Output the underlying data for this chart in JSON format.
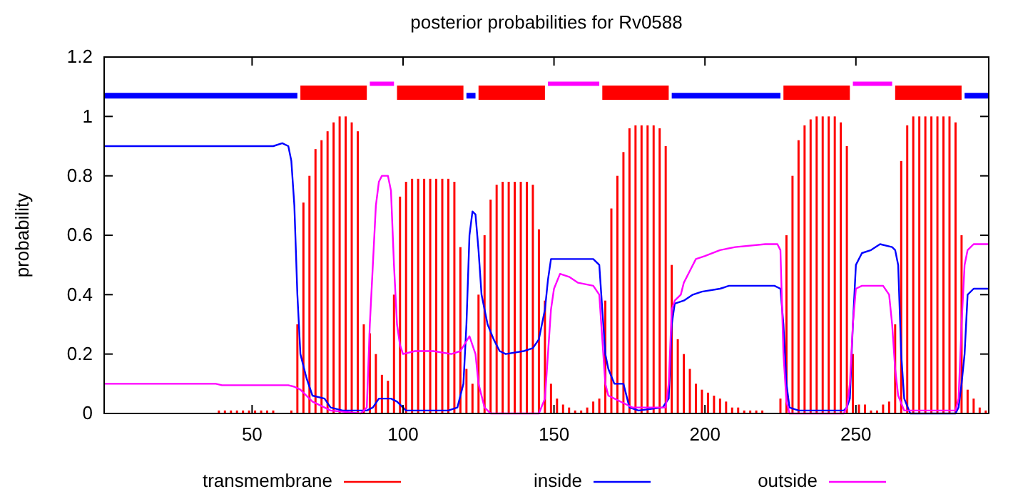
{
  "chart_data": {
    "type": "line",
    "title": "posterior probabilities for Rv0588",
    "ylabel": "probability",
    "xlim": [
      1,
      294
    ],
    "xticks": [
      50,
      100,
      150,
      200,
      250
    ],
    "ylim": [
      0,
      1.2
    ],
    "yticks": [
      0,
      {
        "value": 0.2,
        "label": "0.2"
      },
      {
        "value": 0.4,
        "label": "0.4"
      },
      {
        "value": 0.6,
        "label": "0.6"
      },
      {
        "value": 0.8,
        "label": "0.8"
      },
      1,
      {
        "value": 1.2,
        "label": "1.2"
      }
    ],
    "legend": "bottom",
    "grid": false,
    "series": [
      {
        "name": "transmembrane",
        "type": "bar",
        "color": "#ff0000",
        "x": [
          1,
          3,
          5,
          7,
          9,
          11,
          13,
          15,
          17,
          19,
          21,
          23,
          25,
          27,
          29,
          31,
          33,
          35,
          37,
          39,
          41,
          43,
          45,
          47,
          49,
          51,
          53,
          55,
          57,
          59,
          61,
          63,
          65,
          67,
          69,
          71,
          73,
          75,
          77,
          79,
          81,
          83,
          85,
          87,
          89,
          91,
          93,
          95,
          97,
          99,
          101,
          103,
          105,
          107,
          109,
          111,
          113,
          115,
          117,
          119,
          121,
          123,
          125,
          127,
          129,
          131,
          133,
          135,
          137,
          139,
          141,
          143,
          145,
          147,
          149,
          151,
          153,
          155,
          157,
          159,
          161,
          163,
          165,
          167,
          169,
          171,
          173,
          175,
          177,
          179,
          181,
          183,
          185,
          187,
          189,
          191,
          193,
          195,
          197,
          199,
          201,
          203,
          205,
          207,
          209,
          211,
          213,
          215,
          217,
          219,
          221,
          223,
          225,
          227,
          229,
          231,
          233,
          235,
          237,
          239,
          241,
          243,
          245,
          247,
          249,
          251,
          253,
          255,
          257,
          259,
          261,
          263,
          265,
          267,
          269,
          271,
          273,
          275,
          277,
          279,
          281,
          283,
          285,
          287,
          289,
          291,
          293
        ],
        "values": [
          0,
          0,
          0,
          0,
          0,
          0,
          0,
          0,
          0,
          0,
          0,
          0,
          0,
          0,
          0,
          0,
          0,
          0,
          0,
          0.01,
          0.01,
          0.01,
          0.01,
          0.01,
          0.01,
          0.01,
          0.01,
          0.01,
          0.01,
          0,
          0,
          0.01,
          0.3,
          0.71,
          0.8,
          0.89,
          0.92,
          0.95,
          0.98,
          1.0,
          1.0,
          0.98,
          0.95,
          0.3,
          0.27,
          0.2,
          0.13,
          0.11,
          0.4,
          0.73,
          0.78,
          0.79,
          0.79,
          0.79,
          0.79,
          0.79,
          0.79,
          0.79,
          0.78,
          0.56,
          0.15,
          0.1,
          0.4,
          0.6,
          0.72,
          0.77,
          0.78,
          0.78,
          0.78,
          0.78,
          0.78,
          0.77,
          0.62,
          0.38,
          0.1,
          0.05,
          0.03,
          0.02,
          0.01,
          0.01,
          0.02,
          0.04,
          0.05,
          0.38,
          0.69,
          0.8,
          0.88,
          0.96,
          0.97,
          0.97,
          0.97,
          0.97,
          0.96,
          0.9,
          0.5,
          0.25,
          0.2,
          0.15,
          0.1,
          0.08,
          0.07,
          0.06,
          0.05,
          0.04,
          0.02,
          0.02,
          0.01,
          0.01,
          0.01,
          0.01,
          0,
          0,
          0.05,
          0.6,
          0.8,
          0.92,
          0.97,
          0.99,
          1.0,
          1.0,
          1.0,
          1.0,
          0.98,
          0.9,
          0.2,
          0.03,
          0.03,
          0.01,
          0.01,
          0.03,
          0.04,
          0.3,
          0.85,
          0.97,
          1.0,
          1.0,
          1.0,
          1.0,
          1.0,
          1.0,
          1.0,
          0.98,
          0.6,
          0.08,
          0.05,
          0.02,
          0.01
        ]
      },
      {
        "name": "inside",
        "color": "#0000ff",
        "x": [
          1,
          57,
          60,
          62,
          63,
          64,
          65,
          66,
          68,
          70,
          74,
          76,
          80,
          88,
          90,
          92,
          96,
          98,
          101,
          115,
          118,
          120,
          121,
          122,
          123,
          124,
          125,
          126,
          128,
          130,
          132,
          134,
          140,
          143,
          145,
          147,
          148,
          149,
          152,
          163,
          165,
          166,
          167,
          168,
          170,
          173,
          175,
          178,
          186,
          188,
          189,
          190,
          193,
          196,
          199,
          205,
          208,
          223,
          225,
          226,
          227,
          228,
          231,
          246,
          247,
          248,
          249,
          250,
          252,
          255,
          258,
          262,
          263,
          264,
          265,
          266,
          268,
          283,
          284,
          285,
          286,
          287,
          289,
          294
        ],
        "values": [
          0.9,
          0.9,
          0.91,
          0.9,
          0.85,
          0.7,
          0.4,
          0.2,
          0.12,
          0.06,
          0.05,
          0.02,
          0.01,
          0.01,
          0.02,
          0.05,
          0.05,
          0.04,
          0.01,
          0.01,
          0.02,
          0.1,
          0.3,
          0.6,
          0.68,
          0.67,
          0.55,
          0.4,
          0.3,
          0.25,
          0.21,
          0.2,
          0.21,
          0.22,
          0.25,
          0.35,
          0.45,
          0.52,
          0.52,
          0.52,
          0.5,
          0.35,
          0.2,
          0.15,
          0.1,
          0.1,
          0.02,
          0.01,
          0.02,
          0.05,
          0.3,
          0.37,
          0.38,
          0.4,
          0.41,
          0.42,
          0.43,
          0.43,
          0.42,
          0.3,
          0.1,
          0.02,
          0.01,
          0.01,
          0.02,
          0.05,
          0.3,
          0.5,
          0.54,
          0.55,
          0.57,
          0.56,
          0.55,
          0.5,
          0.2,
          0.05,
          0,
          0,
          0.02,
          0.1,
          0.2,
          0.4,
          0.42,
          0.42
        ]
      },
      {
        "name": "outside",
        "color": "#ff00ff",
        "x": [
          1,
          38,
          40,
          62,
          64,
          66,
          68,
          70,
          74,
          76,
          86,
          88,
          89,
          90,
          91,
          92,
          93,
          95,
          96,
          97,
          98,
          99,
          100,
          104,
          110,
          116,
          119,
          122,
          124,
          125,
          127,
          129,
          145,
          147,
          148,
          149,
          150,
          152,
          155,
          158,
          163,
          165,
          166,
          167,
          168,
          170,
          174,
          176,
          187,
          188,
          189,
          190,
          192,
          193,
          195,
          197,
          200,
          205,
          210,
          220,
          224,
          225,
          226,
          227,
          228,
          246,
          247,
          248,
          249,
          250,
          252,
          259,
          261,
          262,
          263,
          264,
          266,
          283,
          284,
          285,
          286,
          287,
          289,
          294
        ],
        "values": [
          0.1,
          0.1,
          0.095,
          0.095,
          0.09,
          0.08,
          0.06,
          0.04,
          0.02,
          0.01,
          0,
          0.02,
          0.3,
          0.5,
          0.7,
          0.78,
          0.8,
          0.8,
          0.75,
          0.5,
          0.3,
          0.23,
          0.2,
          0.21,
          0.21,
          0.2,
          0.21,
          0.26,
          0.2,
          0.1,
          0.02,
          0,
          0,
          0.05,
          0.2,
          0.35,
          0.42,
          0.47,
          0.46,
          0.44,
          0.43,
          0.4,
          0.25,
          0.1,
          0.06,
          0.05,
          0.03,
          0.02,
          0.02,
          0.1,
          0.35,
          0.38,
          0.4,
          0.44,
          0.48,
          0.52,
          0.53,
          0.55,
          0.56,
          0.57,
          0.57,
          0.55,
          0.2,
          0.04,
          0,
          0,
          0.02,
          0.1,
          0.3,
          0.42,
          0.43,
          0.43,
          0.4,
          0.3,
          0.15,
          0.06,
          0.01,
          0.01,
          0.05,
          0.3,
          0.5,
          0.55,
          0.57,
          0.57
        ]
      },
      {
        "color": "#0000ff",
        "x": [
          1,
          65,
          65.5,
          121,
          124,
          124.5,
          189,
          225,
          225.5,
          286,
          294
        ],
        "values": [
          1.07,
          1.07,
          null,
          1.07,
          1.07,
          null,
          1.07,
          1.07,
          null,
          1.07,
          1.07
        ]
      },
      {
        "color": "#ff0000",
        "x": [
          66,
          88,
          88.5,
          98,
          120,
          120.5,
          125,
          147,
          147.5,
          166,
          188,
          188.5,
          226,
          248,
          248.5,
          263,
          285
        ],
        "values": [
          1.08,
          1.08,
          null,
          1.08,
          1.08,
          null,
          1.08,
          1.08,
          null,
          1.08,
          1.08,
          null,
          1.08,
          1.08,
          null,
          1.08,
          1.08
        ]
      },
      {
        "color": "#ff00ff",
        "x": [
          89,
          97,
          97.5,
          148,
          165,
          165.5,
          249,
          262
        ],
        "values": [
          1.11,
          1.11,
          null,
          1.11,
          1.11,
          null,
          1.11,
          1.11
        ]
      }
    ]
  }
}
